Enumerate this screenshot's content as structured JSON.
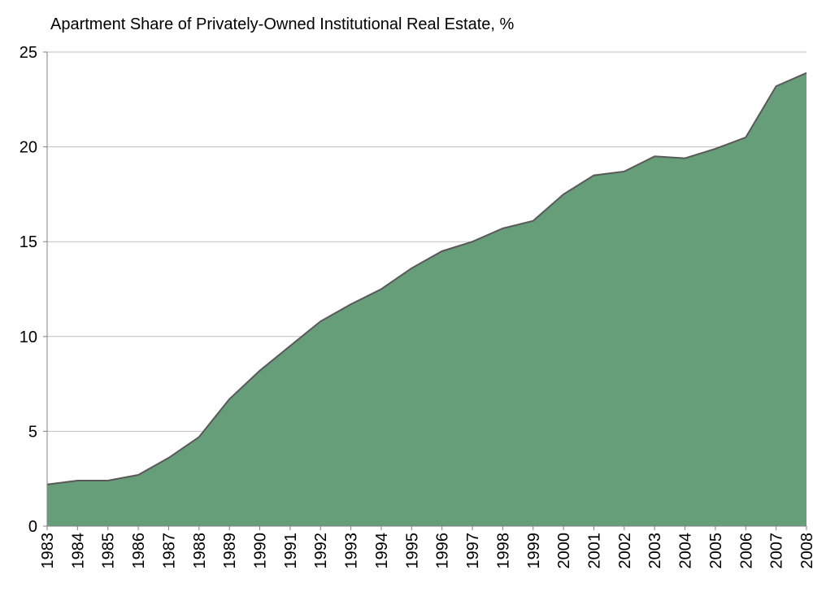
{
  "chart_data": {
    "type": "area",
    "title": "Apartment Share of Privately-Owned Institutional Real Estate, %",
    "x": [
      1983,
      1984,
      1985,
      1986,
      1987,
      1988,
      1989,
      1990,
      1991,
      1992,
      1993,
      1994,
      1995,
      1996,
      1997,
      1998,
      1999,
      2000,
      2001,
      2002,
      2003,
      2004,
      2005,
      2006,
      2007,
      2008
    ],
    "values": [
      2.2,
      2.4,
      2.4,
      2.7,
      3.6,
      4.7,
      6.7,
      8.2,
      9.5,
      10.8,
      11.7,
      12.5,
      13.6,
      14.5,
      15.0,
      15.7,
      16.1,
      17.5,
      18.5,
      18.7,
      19.5,
      19.4,
      19.9,
      20.5,
      23.2,
      23.9
    ],
    "color": "#669e7a",
    "xlim": [
      1983,
      2008
    ],
    "xticks": [
      1983,
      1984,
      1985,
      1986,
      1987,
      1988,
      1989,
      1990,
      1991,
      1992,
      1993,
      1994,
      1995,
      1996,
      1997,
      1998,
      1999,
      2000,
      2001,
      2002,
      2003,
      2004,
      2005,
      2006,
      2007,
      2008
    ],
    "ylim": [
      0,
      25
    ],
    "yticks": [
      0,
      5,
      10,
      15,
      20,
      25
    ],
    "grid": true
  }
}
